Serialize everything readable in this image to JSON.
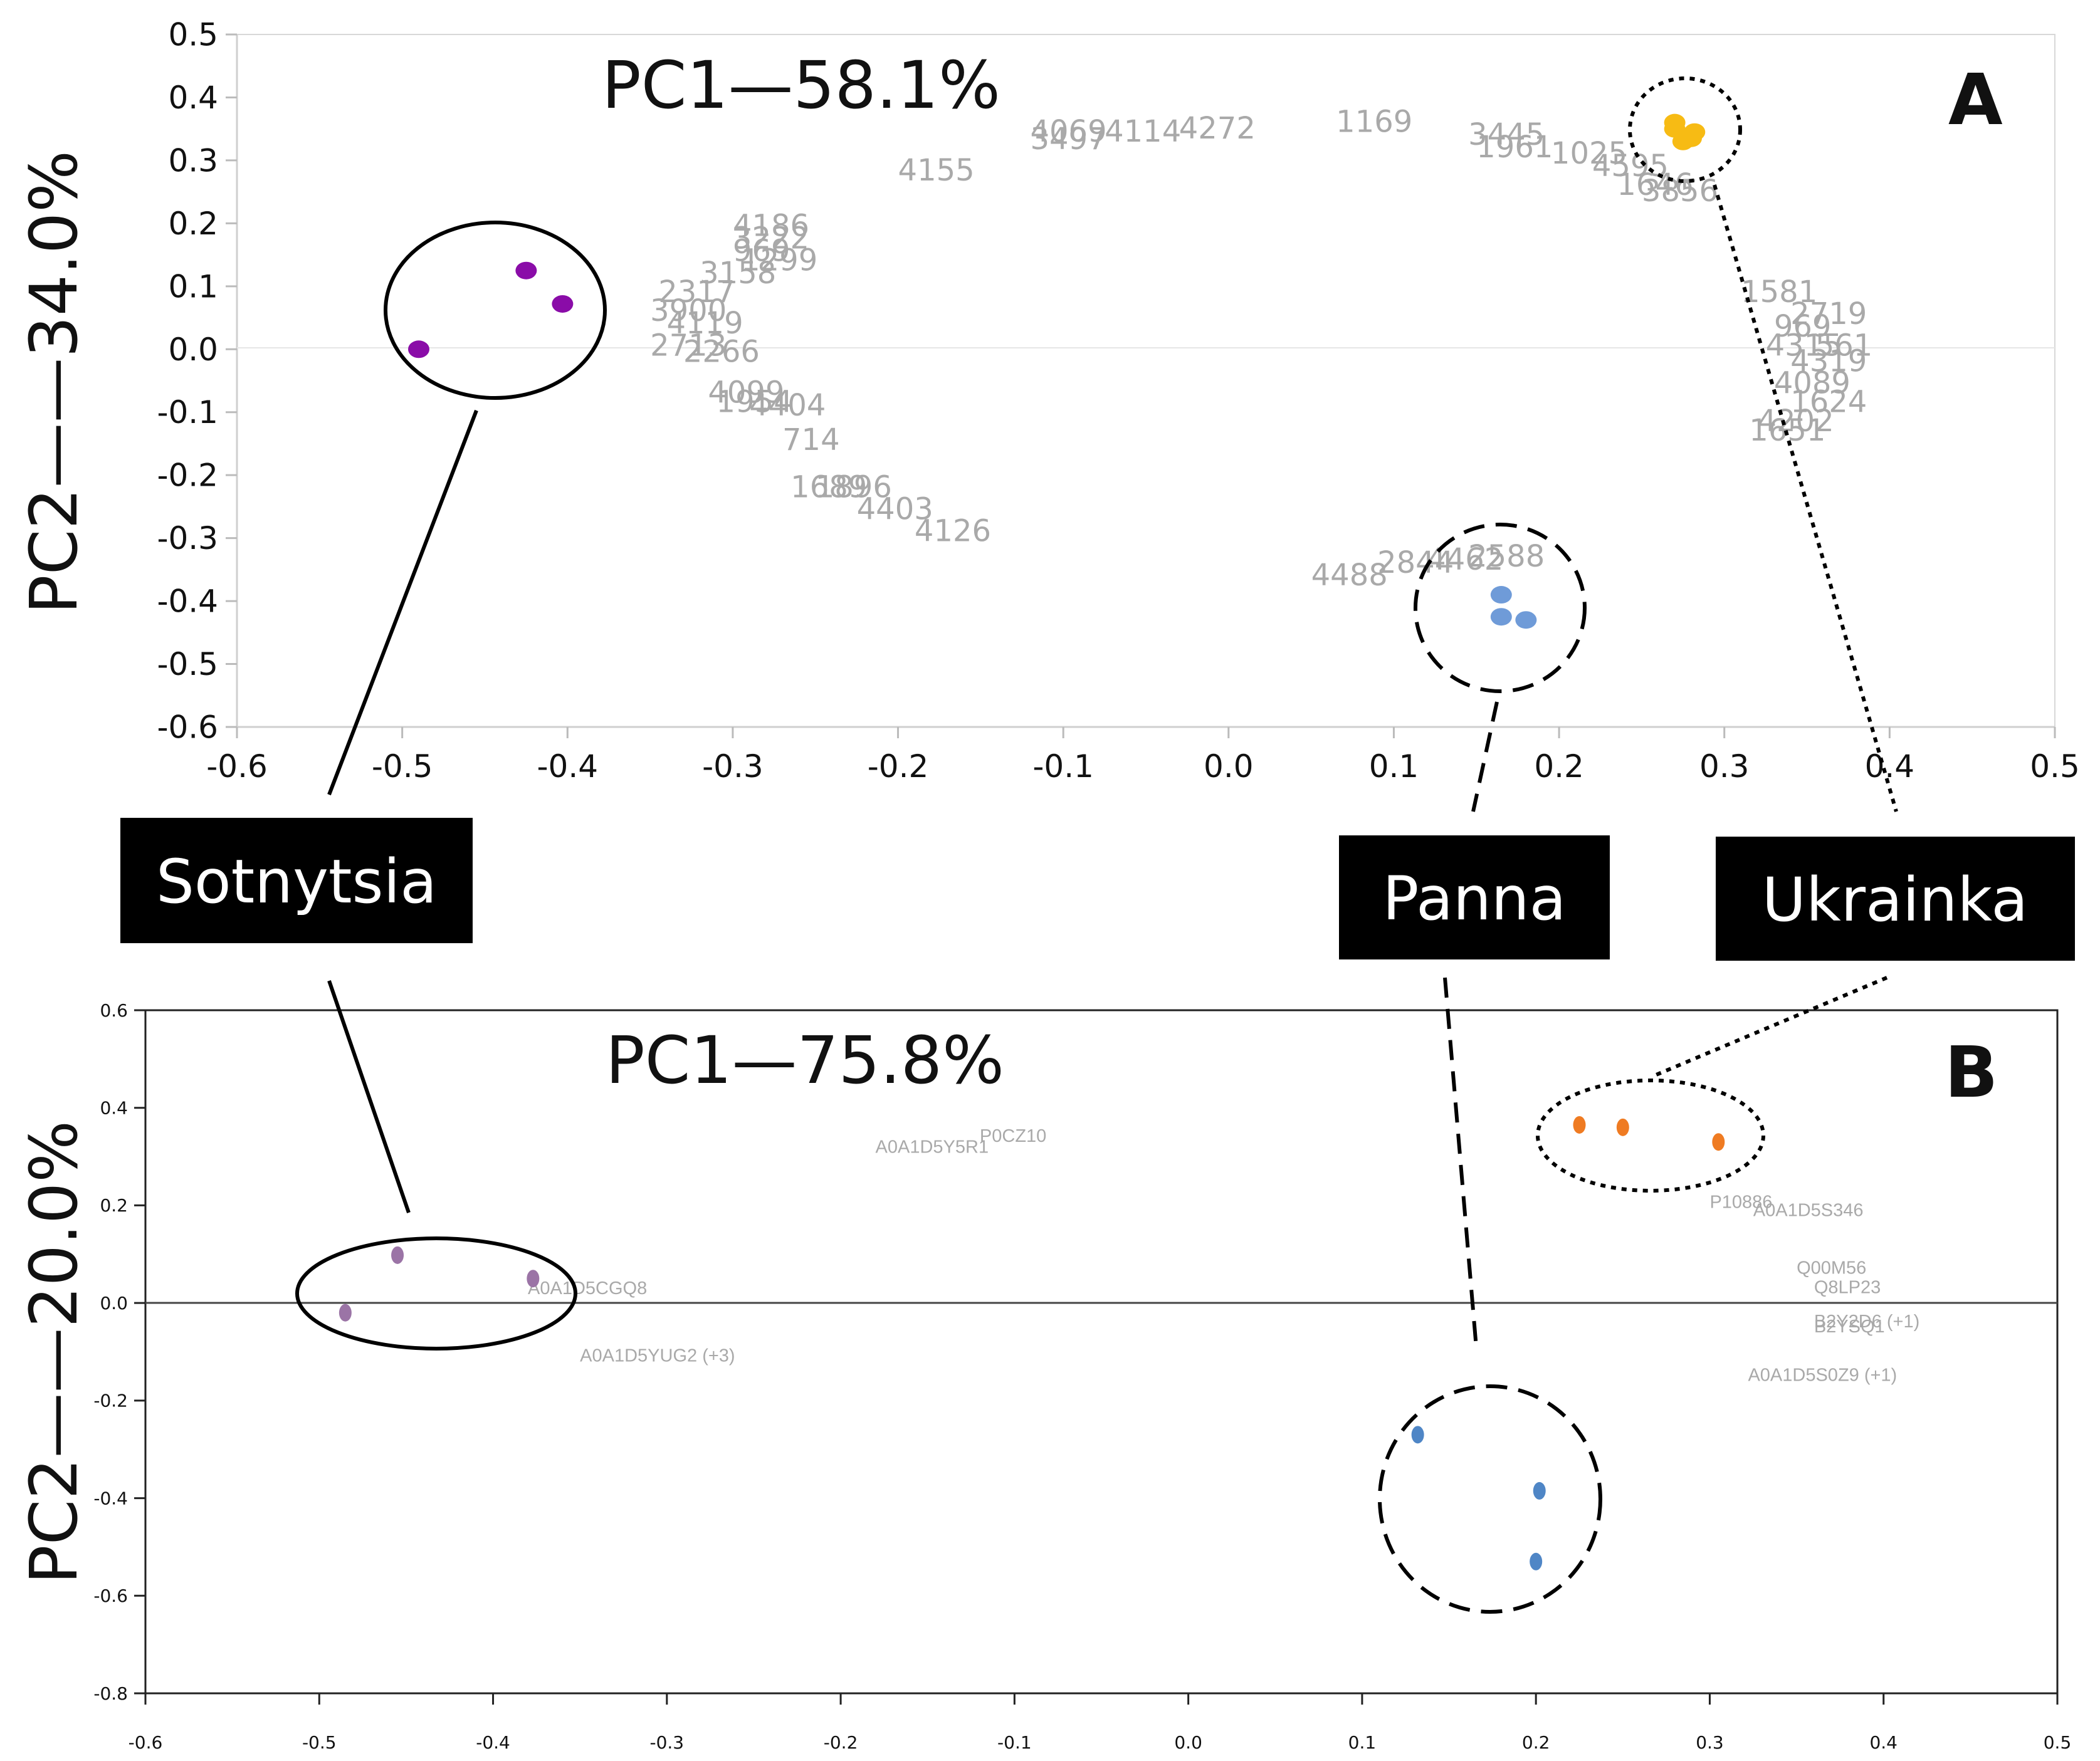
{
  "chart_data": [
    {
      "type": "scatter",
      "panel_label": "A",
      "pc1_label": "PC1—58.1%",
      "ylabel": "PC2——34.0%",
      "xlim": [
        -0.6,
        0.5
      ],
      "ylim": [
        -0.6,
        0.5
      ],
      "x_ticks": [
        "-0.6",
        "-0.5",
        "-0.4",
        "-0.3",
        "-0.2",
        "-0.1",
        "0.0",
        "0.1",
        "0.2",
        "0.3",
        "0.4",
        "0.5"
      ],
      "y_ticks": [
        "0.5",
        "0.4",
        "0.3",
        "0.2",
        "0.1",
        "0.0",
        "-0.1",
        "-0.2",
        "-0.3",
        "-0.4",
        "-0.5",
        "-0.6"
      ],
      "series": [
        {
          "name": "Sotnytsia",
          "color": "#8a0ca8",
          "points": [
            [
              -0.425,
              0.125
            ],
            [
              -0.403,
              0.072
            ],
            [
              -0.49,
              0.0
            ]
          ]
        },
        {
          "name": "Panna",
          "color": "#6f9bd8",
          "points": [
            [
              0.165,
              -0.39
            ],
            [
              0.165,
              -0.425
            ],
            [
              0.18,
              -0.43
            ]
          ]
        },
        {
          "name": "Ukrainka",
          "color": "#f7bb14",
          "points": [
            [
              0.27,
              0.35
            ],
            [
              0.275,
              0.33
            ],
            [
              0.282,
              0.345
            ],
            [
              0.27,
              0.36
            ],
            [
              0.28,
              0.335
            ]
          ]
        }
      ],
      "variables": [
        {
          "label": "4069",
          "x": -0.12,
          "y": 0.33
        },
        {
          "label": "3497",
          "x": -0.12,
          "y": 0.318
        },
        {
          "label": "4114",
          "x": -0.075,
          "y": 0.33
        },
        {
          "label": "4272",
          "x": -0.03,
          "y": 0.335
        },
        {
          "label": "1169",
          "x": 0.065,
          "y": 0.345
        },
        {
          "label": "4155",
          "x": -0.2,
          "y": 0.268
        },
        {
          "label": "3445",
          "x": 0.145,
          "y": 0.325
        },
        {
          "label": "1961",
          "x": 0.15,
          "y": 0.305
        },
        {
          "label": "1025",
          "x": 0.195,
          "y": 0.295
        },
        {
          "label": "4595",
          "x": 0.22,
          "y": 0.275
        },
        {
          "label": "1646",
          "x": 0.235,
          "y": 0.245
        },
        {
          "label": "3856",
          "x": 0.25,
          "y": 0.235
        },
        {
          "label": "4186",
          "x": -0.3,
          "y": 0.18
        },
        {
          "label": "3222",
          "x": -0.3,
          "y": 0.16
        },
        {
          "label": "1299",
          "x": -0.295,
          "y": 0.125
        },
        {
          "label": "969",
          "x": -0.3,
          "y": 0.14
        },
        {
          "label": "3158",
          "x": -0.32,
          "y": 0.105
        },
        {
          "label": "2317",
          "x": -0.345,
          "y": 0.075
        },
        {
          "label": "3900",
          "x": -0.35,
          "y": 0.045
        },
        {
          "label": "4119",
          "x": -0.34,
          "y": 0.025
        },
        {
          "label": "2713",
          "x": -0.35,
          "y": -0.01
        },
        {
          "label": "2266",
          "x": -0.33,
          "y": -0.02
        },
        {
          "label": "4099",
          "x": -0.315,
          "y": -0.085
        },
        {
          "label": "1954",
          "x": -0.31,
          "y": -0.1
        },
        {
          "label": "4404",
          "x": -0.29,
          "y": -0.105
        },
        {
          "label": "714",
          "x": -0.27,
          "y": -0.16
        },
        {
          "label": "1689",
          "x": -0.265,
          "y": -0.235
        },
        {
          "label": "1896",
          "x": -0.25,
          "y": -0.235
        },
        {
          "label": "4403",
          "x": -0.225,
          "y": -0.27
        },
        {
          "label": "4126",
          "x": -0.19,
          "y": -0.305
        },
        {
          "label": "4488",
          "x": 0.05,
          "y": -0.375
        },
        {
          "label": "2844",
          "x": 0.09,
          "y": -0.355
        },
        {
          "label": "4462",
          "x": 0.12,
          "y": -0.35
        },
        {
          "label": "2588",
          "x": 0.145,
          "y": -0.345
        },
        {
          "label": "1581",
          "x": 0.31,
          "y": 0.075
        },
        {
          "label": "2719",
          "x": 0.34,
          "y": 0.04
        },
        {
          "label": "969",
          "x": 0.33,
          "y": 0.02
        },
        {
          "label": "4315",
          "x": 0.325,
          "y": -0.01
        },
        {
          "label": "561",
          "x": 0.355,
          "y": -0.01
        },
        {
          "label": "4319",
          "x": 0.34,
          "y": -0.035
        },
        {
          "label": "4089",
          "x": 0.33,
          "y": -0.07
        },
        {
          "label": "1624",
          "x": 0.34,
          "y": -0.1
        },
        {
          "label": "4202",
          "x": 0.32,
          "y": -0.13
        },
        {
          "label": "1651",
          "x": 0.315,
          "y": -0.145
        }
      ]
    },
    {
      "type": "scatter",
      "panel_label": "B",
      "pc1_label": "PC1—75.8%",
      "ylabel": "PC2——20.0%",
      "xlim": [
        -0.6,
        0.5
      ],
      "ylim": [
        -0.8,
        0.6
      ],
      "x_ticks": [
        "-0.6",
        "-0.5",
        "-0.4",
        "-0.3",
        "-0.2",
        "-0.1",
        "0.0",
        "0.1",
        "0.2",
        "0.3",
        "0.4",
        "0.5"
      ],
      "y_ticks": [
        "0.6",
        "0.4",
        "0.2",
        "0.0",
        "-0.2",
        "-0.4",
        "-0.6",
        "-0.8"
      ],
      "series": [
        {
          "name": "Sotnytsia",
          "color": "#9b74a6",
          "points": [
            [
              -0.455,
              0.098
            ],
            [
              -0.377,
              0.05
            ],
            [
              -0.485,
              -0.02
            ]
          ]
        },
        {
          "name": "Panna",
          "color": "#4f86c6",
          "points": [
            [
              0.132,
              -0.27
            ],
            [
              0.202,
              -0.385
            ],
            [
              0.2,
              -0.53
            ]
          ]
        },
        {
          "name": "Ukrainka",
          "color": "#ef7b22",
          "points": [
            [
              0.225,
              0.365
            ],
            [
              0.25,
              0.36
            ],
            [
              0.305,
              0.33
            ]
          ]
        }
      ],
      "variables": [
        {
          "label": "A0A1D5Y5R1",
          "x": -0.18,
          "y": 0.308
        },
        {
          "label": "P0CZ10",
          "x": -0.12,
          "y": 0.33
        },
        {
          "label": "A0A1D5CGQ8",
          "x": -0.38,
          "y": 0.018
        },
        {
          "label": "A0A1D5YUG2 (+3)",
          "x": -0.35,
          "y": -0.12
        },
        {
          "label": "P10886",
          "x": 0.3,
          "y": 0.195
        },
        {
          "label": "A0A1D5S346",
          "x": 0.325,
          "y": 0.178
        },
        {
          "label": "Q00M56",
          "x": 0.35,
          "y": 0.06
        },
        {
          "label": "Q8LP23",
          "x": 0.36,
          "y": 0.02
        },
        {
          "label": "B2Y2D6 (+1)",
          "x": 0.36,
          "y": -0.05
        },
        {
          "label": "B2YSQ1",
          "x": 0.36,
          "y": -0.06
        },
        {
          "label": "A0A1D5S0Z9 (+1)",
          "x": 0.322,
          "y": -0.16
        }
      ]
    }
  ],
  "callouts": [
    "Sotnytsia",
    "Panna",
    "Ukrainka"
  ]
}
